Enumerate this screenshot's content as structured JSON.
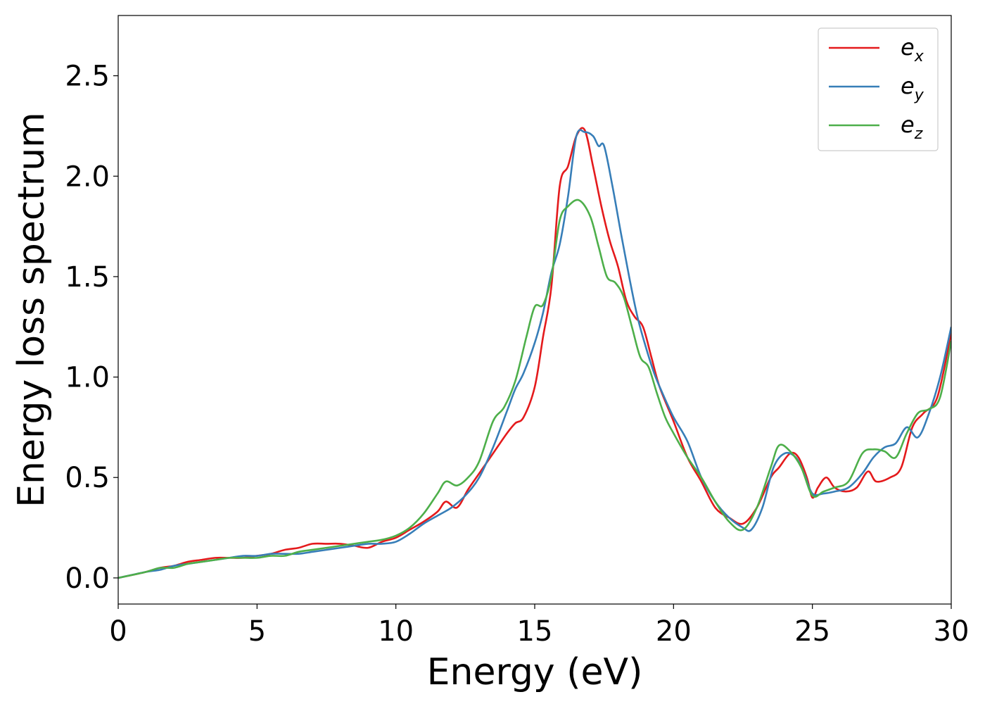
{
  "chart_data": {
    "type": "line",
    "xlabel": "Energy (eV)",
    "ylabel": "Energy loss spectrum",
    "xlim": [
      0,
      30
    ],
    "ylim": [
      -0.13,
      2.8
    ],
    "xticks": [
      0,
      5,
      10,
      15,
      20,
      25,
      30
    ],
    "yticks": [
      0.0,
      0.5,
      1.0,
      1.5,
      2.0,
      2.5
    ],
    "xtick_labels": [
      "0",
      "5",
      "10",
      "15",
      "20",
      "25",
      "30"
    ],
    "ytick_labels": [
      "0.0",
      "0.5",
      "1.0",
      "1.5",
      "2.0",
      "2.5"
    ],
    "grid": false,
    "legend_position": "top-right",
    "series": [
      {
        "name": "e_x",
        "label_base": "e",
        "label_sub": "x",
        "color": "#e41a1c",
        "x": [
          0,
          1,
          1.5,
          2,
          2.5,
          3,
          3.5,
          4,
          4.5,
          5,
          5.5,
          6,
          6.5,
          7,
          7.5,
          8,
          8.5,
          9,
          9.5,
          10,
          10.5,
          11,
          11.5,
          11.8,
          12.2,
          12.6,
          13,
          13.5,
          14,
          14.3,
          14.6,
          15,
          15.3,
          15.6,
          15.9,
          16.2,
          16.5,
          16.8,
          17.1,
          17.4,
          17.7,
          18,
          18.3,
          18.6,
          18.9,
          19.2,
          19.5,
          20,
          20.5,
          21,
          21.5,
          22,
          22.5,
          23,
          23.5,
          23.8,
          24.2,
          24.5,
          24.8,
          25,
          25.2,
          25.5,
          25.8,
          26.2,
          26.6,
          27,
          27.3,
          27.8,
          28.2,
          28.6,
          29,
          29.5,
          30
        ],
        "y": [
          0.0,
          0.03,
          0.05,
          0.06,
          0.08,
          0.09,
          0.1,
          0.1,
          0.1,
          0.11,
          0.12,
          0.14,
          0.15,
          0.17,
          0.17,
          0.17,
          0.16,
          0.15,
          0.18,
          0.2,
          0.24,
          0.28,
          0.33,
          0.38,
          0.35,
          0.44,
          0.52,
          0.62,
          0.72,
          0.77,
          0.8,
          0.95,
          1.2,
          1.45,
          1.95,
          2.05,
          2.2,
          2.23,
          2.05,
          1.85,
          1.68,
          1.55,
          1.38,
          1.3,
          1.25,
          1.1,
          0.95,
          0.78,
          0.6,
          0.48,
          0.35,
          0.3,
          0.27,
          0.35,
          0.5,
          0.55,
          0.62,
          0.6,
          0.5,
          0.4,
          0.45,
          0.5,
          0.45,
          0.43,
          0.45,
          0.53,
          0.48,
          0.5,
          0.55,
          0.75,
          0.82,
          0.9,
          1.22
        ]
      },
      {
        "name": "e_y",
        "label_base": "e",
        "label_sub": "y",
        "color": "#377eb8",
        "x": [
          0,
          1,
          1.5,
          2,
          2.5,
          3,
          3.5,
          4,
          4.5,
          5,
          5.5,
          6,
          6.5,
          7,
          7.5,
          8,
          8.5,
          9,
          9.5,
          10,
          10.5,
          11,
          11.5,
          12,
          12.5,
          13,
          13.5,
          14,
          14.3,
          14.6,
          15,
          15.3,
          15.6,
          15.9,
          16.2,
          16.5,
          16.8,
          17.1,
          17.3,
          17.5,
          17.8,
          18.1,
          18.4,
          18.7,
          19,
          19.3,
          19.6,
          20,
          20.5,
          21,
          21.5,
          22,
          22.5,
          22.8,
          23.2,
          23.6,
          24,
          24.4,
          24.7,
          25,
          25.4,
          25.8,
          26.3,
          26.8,
          27.2,
          27.6,
          28,
          28.4,
          28.8,
          29.2,
          29.6,
          30
        ],
        "y": [
          0.0,
          0.03,
          0.04,
          0.06,
          0.07,
          0.08,
          0.09,
          0.1,
          0.11,
          0.11,
          0.12,
          0.12,
          0.12,
          0.13,
          0.14,
          0.15,
          0.16,
          0.17,
          0.17,
          0.18,
          0.22,
          0.27,
          0.31,
          0.35,
          0.41,
          0.5,
          0.65,
          0.83,
          0.94,
          1.02,
          1.17,
          1.32,
          1.52,
          1.66,
          1.9,
          2.2,
          2.22,
          2.2,
          2.15,
          2.15,
          1.95,
          1.72,
          1.5,
          1.3,
          1.15,
          1.02,
          0.92,
          0.8,
          0.68,
          0.5,
          0.38,
          0.3,
          0.25,
          0.24,
          0.35,
          0.55,
          0.62,
          0.6,
          0.52,
          0.42,
          0.42,
          0.43,
          0.45,
          0.52,
          0.6,
          0.65,
          0.67,
          0.75,
          0.7,
          0.82,
          1.0,
          1.25
        ]
      },
      {
        "name": "e_z",
        "label_base": "e",
        "label_sub": "z",
        "color": "#4daf4a",
        "x": [
          0,
          1,
          1.5,
          2,
          2.5,
          3,
          3.5,
          4,
          4.5,
          5,
          5.5,
          6,
          6.5,
          7,
          7.5,
          8,
          8.5,
          9,
          9.5,
          10,
          10.5,
          11,
          11.5,
          11.8,
          12.2,
          12.6,
          13,
          13.5,
          13.9,
          14.3,
          14.7,
          15,
          15.3,
          15.6,
          15.9,
          16.2,
          16.6,
          17,
          17.3,
          17.6,
          17.9,
          18.2,
          18.5,
          18.8,
          19.1,
          19.4,
          19.7,
          20,
          20.5,
          21,
          21.5,
          22,
          22.5,
          23,
          23.5,
          23.8,
          24.2,
          24.6,
          25,
          25.4,
          25.8,
          26.3,
          26.8,
          27.2,
          27.6,
          28,
          28.4,
          28.8,
          29.2,
          29.6,
          30
        ],
        "y": [
          0.0,
          0.03,
          0.05,
          0.05,
          0.07,
          0.08,
          0.09,
          0.1,
          0.1,
          0.1,
          0.11,
          0.11,
          0.13,
          0.14,
          0.15,
          0.16,
          0.17,
          0.18,
          0.19,
          0.21,
          0.25,
          0.32,
          0.42,
          0.48,
          0.46,
          0.5,
          0.58,
          0.78,
          0.85,
          0.98,
          1.2,
          1.35,
          1.36,
          1.5,
          1.78,
          1.85,
          1.88,
          1.8,
          1.65,
          1.5,
          1.47,
          1.4,
          1.25,
          1.1,
          1.05,
          0.92,
          0.8,
          0.72,
          0.6,
          0.5,
          0.38,
          0.28,
          0.24,
          0.35,
          0.55,
          0.66,
          0.63,
          0.55,
          0.41,
          0.43,
          0.45,
          0.48,
          0.62,
          0.64,
          0.63,
          0.6,
          0.72,
          0.82,
          0.84,
          0.9,
          1.18
        ]
      }
    ]
  }
}
